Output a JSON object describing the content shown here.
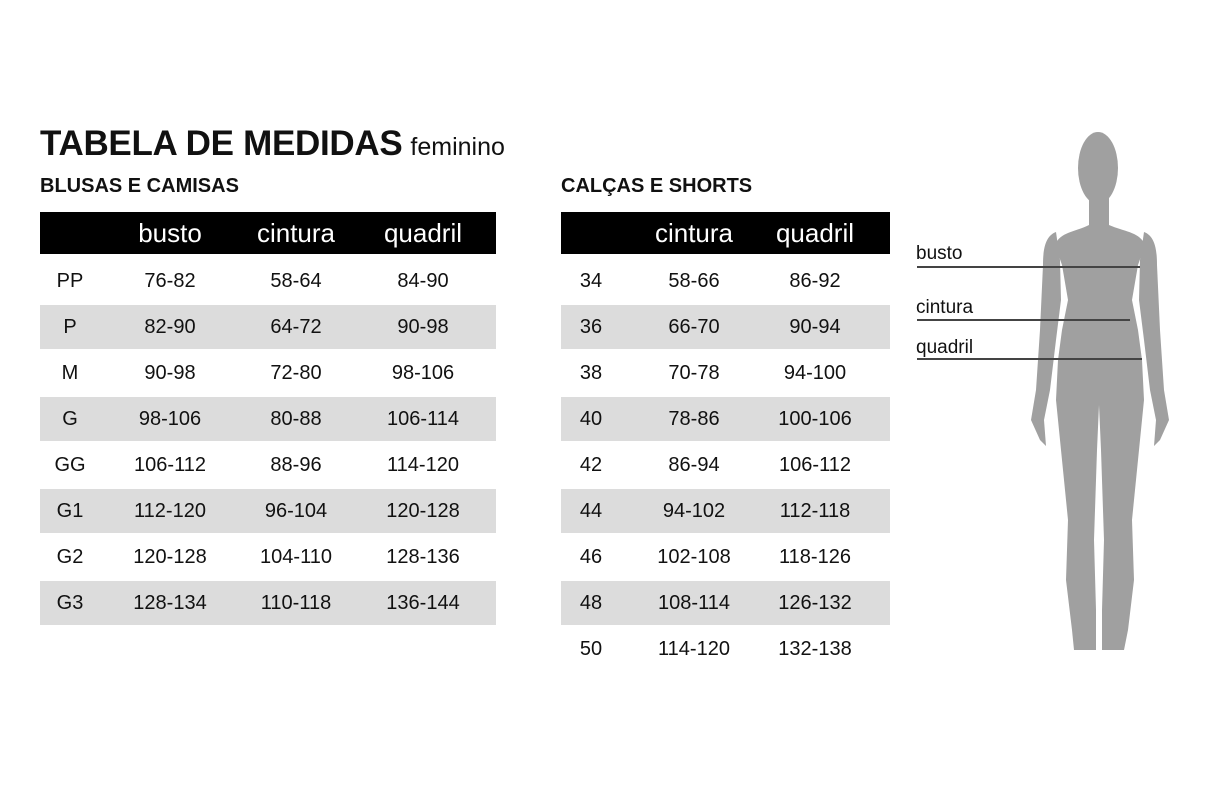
{
  "title": "TABELA DE MEDIDAS",
  "subtitle": "feminino",
  "blusas": {
    "heading": "BLUSAS E CAMISAS",
    "columns": [
      "",
      "busto",
      "cintura",
      "quadril"
    ],
    "rows": [
      [
        "PP",
        "76-82",
        "58-64",
        "84-90"
      ],
      [
        "P",
        "82-90",
        "64-72",
        "90-98"
      ],
      [
        "M",
        "90-98",
        "72-80",
        "98-106"
      ],
      [
        "G",
        "98-106",
        "80-88",
        "106-114"
      ],
      [
        "GG",
        "106-112",
        "88-96",
        "114-120"
      ],
      [
        "G1",
        "112-120",
        "96-104",
        "120-128"
      ],
      [
        "G2",
        "120-128",
        "104-110",
        "128-136"
      ],
      [
        "G3",
        "128-134",
        "110-118",
        "136-144"
      ]
    ]
  },
  "calcas": {
    "heading": "CALÇAS E SHORTS",
    "columns": [
      "",
      "cintura",
      "quadril"
    ],
    "rows": [
      [
        "34",
        "58-66",
        "86-92"
      ],
      [
        "36",
        "66-70",
        "90-94"
      ],
      [
        "38",
        "70-78",
        "94-100"
      ],
      [
        "40",
        "78-86",
        "100-106"
      ],
      [
        "42",
        "86-94",
        "106-112"
      ],
      [
        "44",
        "94-102",
        "112-118"
      ],
      [
        "46",
        "102-108",
        "118-126"
      ],
      [
        "48",
        "108-114",
        "126-132"
      ],
      [
        "50",
        "114-120",
        "132-138"
      ]
    ]
  },
  "figure": {
    "labels": [
      "busto",
      "cintura",
      "quadril"
    ],
    "silhouette_color": "#a0a0a0",
    "line_color": "#444444"
  },
  "colors": {
    "header_bg": "#000000",
    "stripe": "#dcdcdc"
  }
}
